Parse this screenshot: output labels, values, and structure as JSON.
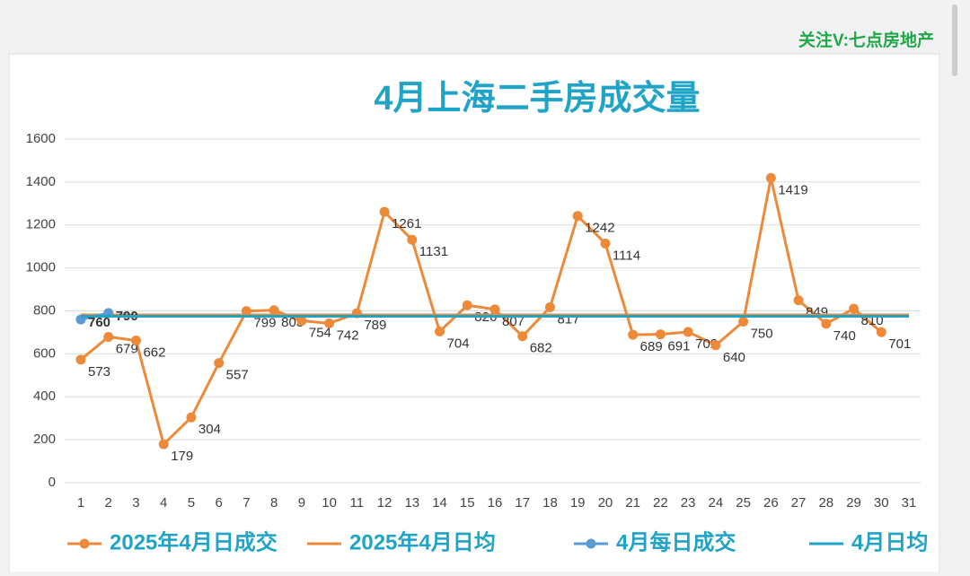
{
  "watermark": "关注V:七点房地产",
  "chart_data": {
    "type": "line",
    "title": "4月上海二手房成交量",
    "x": [
      1,
      2,
      3,
      4,
      5,
      6,
      7,
      8,
      9,
      10,
      11,
      12,
      13,
      14,
      15,
      16,
      17,
      18,
      19,
      20,
      21,
      22,
      23,
      24,
      25,
      26,
      27,
      28,
      29,
      30,
      31
    ],
    "xlim": [
      1,
      31
    ],
    "ylim": [
      0,
      1600
    ],
    "yticks": [
      0,
      200,
      400,
      600,
      800,
      1000,
      1200,
      1400,
      1600
    ],
    "grid": true,
    "legend": "bottom",
    "series": [
      {
        "name": "2025年4月日成交",
        "color": "#ed8a3a",
        "markers": true,
        "labels": true,
        "values": [
          573,
          679,
          662,
          179,
          304,
          557,
          799,
          803,
          754,
          742,
          789,
          1261,
          1131,
          704,
          826,
          807,
          682,
          817,
          1242,
          1114,
          689,
          691,
          702,
          640,
          750,
          1419,
          849,
          740,
          810,
          701,
          null
        ]
      },
      {
        "name": "2025年4月日均",
        "color": "#ed8a3a",
        "markers": false,
        "labels": false,
        "values": [
          781,
          781,
          781,
          781,
          781,
          781,
          781,
          781,
          781,
          781,
          781,
          781,
          781,
          781,
          781,
          781,
          781,
          781,
          781,
          781,
          781,
          781,
          781,
          781,
          781,
          781,
          781,
          781,
          781,
          781,
          781
        ]
      },
      {
        "name": "4月每日成交",
        "color": "#5b9bd5",
        "markers": true,
        "labels": true,
        "label_color": "#1fa84a",
        "values": [
          760,
          790,
          null,
          null,
          null,
          null,
          null,
          null,
          null,
          null,
          null,
          null,
          null,
          null,
          null,
          null,
          null,
          null,
          null,
          null,
          null,
          null,
          null,
          null,
          null,
          null,
          null,
          null,
          null,
          null,
          null
        ]
      },
      {
        "name": "4月日均",
        "color": "#1fa3c7",
        "markers": false,
        "labels": false,
        "values": [
          775,
          775,
          775,
          775,
          775,
          775,
          775,
          775,
          775,
          775,
          775,
          775,
          775,
          775,
          775,
          775,
          775,
          775,
          775,
          775,
          775,
          775,
          775,
          775,
          775,
          775,
          775,
          775,
          775,
          775,
          775
        ]
      }
    ]
  }
}
